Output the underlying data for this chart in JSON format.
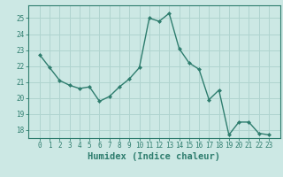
{
  "x": [
    0,
    1,
    2,
    3,
    4,
    5,
    6,
    7,
    8,
    9,
    10,
    11,
    12,
    13,
    14,
    15,
    16,
    17,
    18,
    19,
    20,
    21,
    22,
    23
  ],
  "y": [
    22.7,
    21.9,
    21.1,
    20.8,
    20.6,
    20.7,
    19.8,
    20.1,
    20.7,
    21.2,
    21.9,
    25.0,
    24.8,
    25.3,
    23.1,
    22.2,
    21.8,
    19.9,
    20.5,
    17.7,
    18.5,
    18.5,
    17.8,
    17.7
  ],
  "line_color": "#2e7d6e",
  "marker": "D",
  "marker_size": 2.0,
  "bg_color": "#cce8e4",
  "grid_color": "#b0d4cf",
  "axis_color": "#2e7d6e",
  "xlabel": "Humidex (Indice chaleur)",
  "ylim": [
    17.5,
    25.8
  ],
  "yticks": [
    18,
    19,
    20,
    21,
    22,
    23,
    24,
    25
  ],
  "xticks": [
    0,
    1,
    2,
    3,
    4,
    5,
    6,
    7,
    8,
    9,
    10,
    11,
    12,
    13,
    14,
    15,
    16,
    17,
    18,
    19,
    20,
    21,
    22,
    23
  ],
  "tick_fontsize": 5.5,
  "xlabel_fontsize": 7.5,
  "linewidth": 1.0
}
